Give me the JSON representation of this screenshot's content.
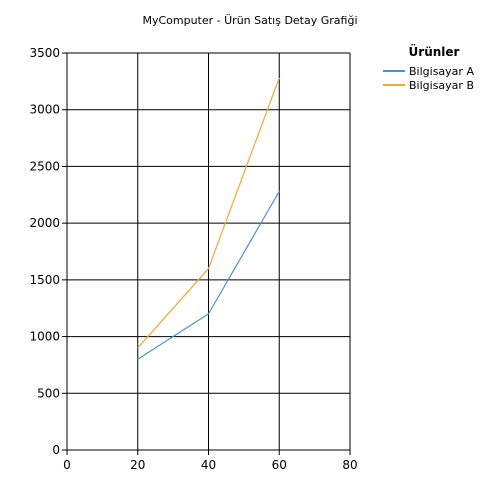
{
  "chart_data": {
    "type": "line",
    "title": "MyComputer - Ürün Satış Detay Grafiği",
    "xlabel": "",
    "ylabel": "",
    "xlim": [
      0,
      80
    ],
    "ylim": [
      0,
      3500
    ],
    "x_ticks": [
      0,
      20,
      40,
      60,
      80
    ],
    "y_ticks": [
      0,
      500,
      1000,
      1500,
      2000,
      2500,
      3000,
      3500
    ],
    "grid": true,
    "legend": {
      "title": "Ürünler",
      "placement": "top-right"
    },
    "series": [
      {
        "name": "Bilgisayar A",
        "color": "#4a90d9",
        "x": [
          20,
          40,
          60
        ],
        "values": [
          800,
          1200,
          2280
        ]
      },
      {
        "name": "Bilgisayar B",
        "color": "#f4a535",
        "x": [
          20,
          40,
          60
        ],
        "values": [
          900,
          1600,
          3280
        ]
      }
    ]
  }
}
